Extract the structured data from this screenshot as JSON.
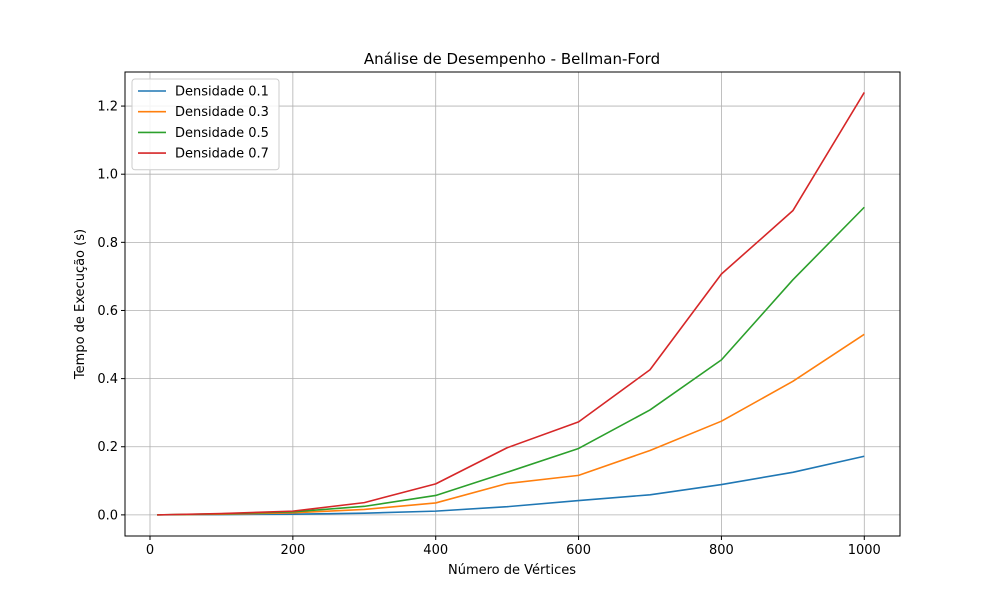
{
  "chart_data": {
    "type": "line",
    "title": "Análise de Desempenho - Bellman-Ford",
    "xlabel": "Número de Vértices",
    "ylabel": "Tempo de Execução (s)",
    "xlim": [
      -35,
      1050
    ],
    "ylim": [
      -0.062,
      1.3
    ],
    "xticks": [
      0,
      200,
      400,
      600,
      800,
      1000
    ],
    "yticks": [
      0.0,
      0.2,
      0.4,
      0.6,
      0.8,
      1.0,
      1.2
    ],
    "xtick_labels": [
      "0",
      "200",
      "400",
      "600",
      "800",
      "1000"
    ],
    "ytick_labels": [
      "0.0",
      "0.2",
      "0.4",
      "0.6",
      "0.8",
      "1.0",
      "1.2"
    ],
    "grid": true,
    "legend_position": "top-left",
    "x": [
      10,
      100,
      200,
      300,
      400,
      500,
      600,
      700,
      800,
      900,
      1000
    ],
    "series": [
      {
        "name": "Densidade 0.1",
        "color": "#1f77b4",
        "values": [
          0.0,
          0.001,
          0.002,
          0.005,
          0.011,
          0.024,
          0.042,
          0.059,
          0.089,
          0.125,
          0.172
        ]
      },
      {
        "name": "Densidade 0.3",
        "color": "#ff7f0e",
        "values": [
          0.0,
          0.002,
          0.006,
          0.016,
          0.035,
          0.092,
          0.116,
          0.189,
          0.275,
          0.392,
          0.53
        ]
      },
      {
        "name": "Densidade 0.5",
        "color": "#2ca02c",
        "values": [
          0.0,
          0.003,
          0.009,
          0.025,
          0.057,
          0.125,
          0.195,
          0.308,
          0.455,
          0.69,
          0.903
        ]
      },
      {
        "name": "Densidade 0.7",
        "color": "#d62728",
        "values": [
          0.0,
          0.004,
          0.011,
          0.036,
          0.091,
          0.197,
          0.273,
          0.426,
          0.707,
          0.893,
          1.24
        ]
      }
    ]
  }
}
